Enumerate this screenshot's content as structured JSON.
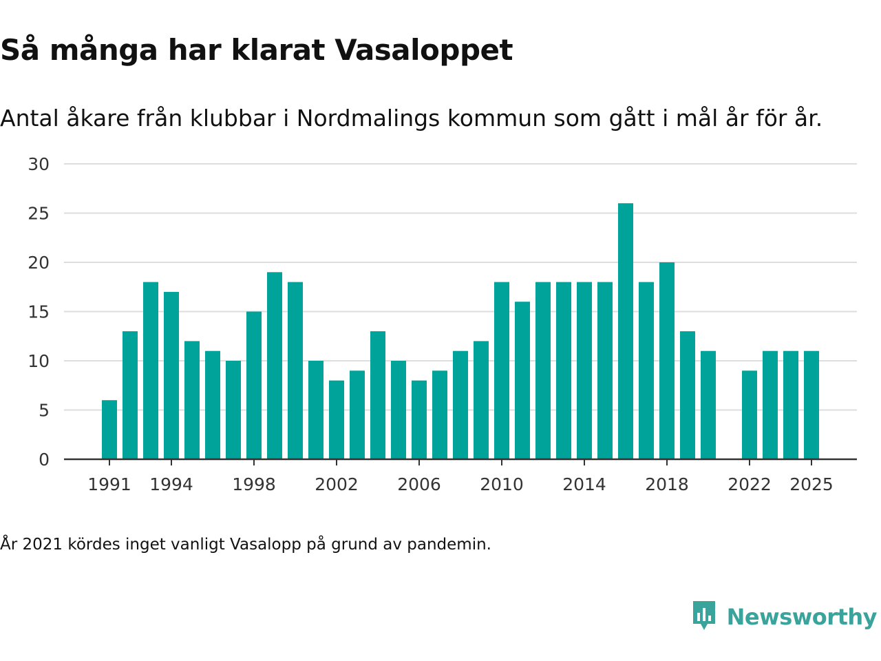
{
  "chart_data": {
    "type": "bar",
    "title": "Så många har klarat Vasaloppet",
    "subtitle": "Antal åkare från klubbar i Nordmalings kommun som gått i mål år för år.",
    "note": "År 2021 kördes inget vanligt Vasalopp på grund av pandemin.",
    "xlabel": "",
    "ylabel": "",
    "ylim": [
      0,
      30
    ],
    "yticks": [
      0,
      5,
      10,
      15,
      20,
      25,
      30
    ],
    "xticks": [
      1991,
      1994,
      1998,
      2002,
      2006,
      2010,
      2014,
      2018,
      2022,
      2025
    ],
    "categories": [
      1991,
      1992,
      1993,
      1994,
      1995,
      1996,
      1997,
      1998,
      1999,
      2000,
      2001,
      2002,
      2003,
      2004,
      2005,
      2006,
      2007,
      2008,
      2009,
      2010,
      2011,
      2012,
      2013,
      2014,
      2015,
      2016,
      2017,
      2018,
      2019,
      2020,
      2021,
      2022,
      2023,
      2024,
      2025
    ],
    "values": [
      6,
      13,
      18,
      17,
      12,
      11,
      10,
      15,
      19,
      18,
      10,
      8,
      9,
      13,
      10,
      8,
      9,
      11,
      12,
      18,
      16,
      18,
      18,
      18,
      18,
      26,
      18,
      20,
      13,
      11,
      null,
      9,
      11,
      11,
      11
    ],
    "bar_color": "#00a39a",
    "grid": true,
    "legend": "none"
  },
  "brand": {
    "name": "Newsworthy",
    "icon": "newsworthy-logo-icon",
    "color": "#3aa39c"
  }
}
